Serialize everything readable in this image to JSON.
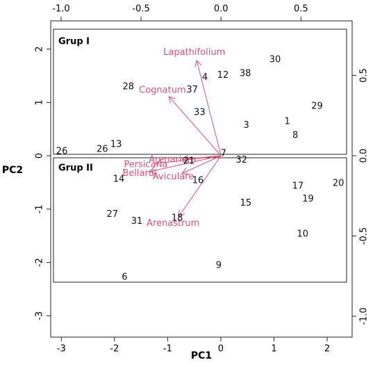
{
  "chart_data": {
    "type": "biplot",
    "xlabel": "PC1",
    "ylabel": "PC2",
    "xlim": [
      -3.2,
      2.47
    ],
    "ylim": [
      -3.4,
      2.53
    ],
    "xticks": [
      -3,
      -2,
      -1,
      0,
      1,
      2
    ],
    "yticks": [
      -3,
      -2,
      -1,
      0,
      1,
      2
    ],
    "x2lim": [
      -1.065,
      0.82
    ],
    "y2lim": [
      -1.13,
      0.84
    ],
    "x2ticks": [
      {
        "value": -1,
        "label": "-1.0"
      },
      {
        "value": -0.5,
        "label": "-0.5"
      },
      {
        "value": 0,
        "label": "0.0"
      },
      {
        "value": 0.5,
        "label": "0.5"
      }
    ],
    "y2ticks": [
      {
        "value": -1,
        "label": "-1.0"
      },
      {
        "value": -0.5,
        "label": "-0.5"
      },
      {
        "value": 0,
        "label": "0.0"
      },
      {
        "value": 0.5,
        "label": "0.5"
      }
    ],
    "groups": [
      "Grup I",
      "Grup II"
    ],
    "points": {
      "color": "#111111",
      "labels": [
        "30",
        "4",
        "12",
        "38",
        "37",
        "28",
        "33",
        "3",
        "1",
        "29",
        "8",
        "13",
        "26",
        "26",
        "7",
        "21",
        "32",
        "14",
        "16",
        "17",
        "20",
        "19",
        "15",
        "27",
        "31",
        "18",
        "10",
        "9",
        "6"
      ],
      "x": [
        1.02,
        -0.3,
        0.04,
        0.46,
        -0.54,
        -1.74,
        -0.4,
        0.48,
        1.25,
        1.81,
        1.4,
        -1.97,
        -2.23,
        -2.99,
        0.05,
        -0.6,
        0.39,
        -1.92,
        -0.43,
        1.45,
        2.21,
        1.64,
        0.47,
        -2.04,
        -1.58,
        -0.82,
        1.54,
        -0.04,
        -1.81
      ],
      "y": [
        1.8,
        1.47,
        1.51,
        1.54,
        1.23,
        1.29,
        0.81,
        0.57,
        0.64,
        0.93,
        0.38,
        0.21,
        0.12,
        0.08,
        0.04,
        -0.1,
        -0.08,
        -0.44,
        -0.47,
        -0.57,
        -0.52,
        -0.81,
        -0.89,
        -1.1,
        -1.23,
        -1.17,
        -1.47,
        -2.06,
        -2.28
      ]
    },
    "arrows": {
      "color": "#d5547a",
      "names": [
        "Lapathifolium",
        "Cognatum",
        "Arenarium",
        "Persicaria",
        "Bellardi",
        "Aviculare",
        "Arenastrum"
      ],
      "x": [
        -0.152,
        -0.326,
        -0.243,
        -0.41,
        -0.45,
        -0.243,
        -0.265
      ],
      "y": [
        0.593,
        0.368,
        -0.022,
        -0.05,
        -0.1,
        -0.11,
        -0.38
      ]
    }
  }
}
